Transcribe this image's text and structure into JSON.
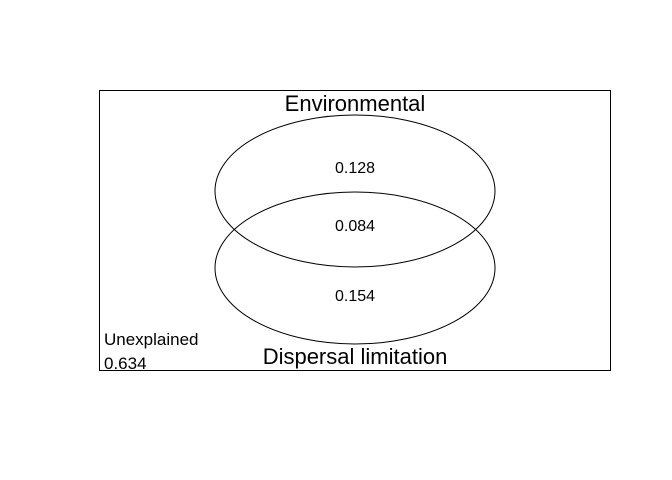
{
  "diagram": {
    "type": "venn-variation-partitioning",
    "sets": [
      {
        "label": "Environmental",
        "unique_fraction": "0.128"
      },
      {
        "label": "Dispersal limitation",
        "unique_fraction": "0.154"
      }
    ],
    "shared_fraction": "0.084",
    "residual": {
      "label": "Unexplained",
      "value": "0.634"
    },
    "colors": {
      "stroke": "#000000",
      "text": "#000000",
      "background": "#ffffff"
    }
  }
}
